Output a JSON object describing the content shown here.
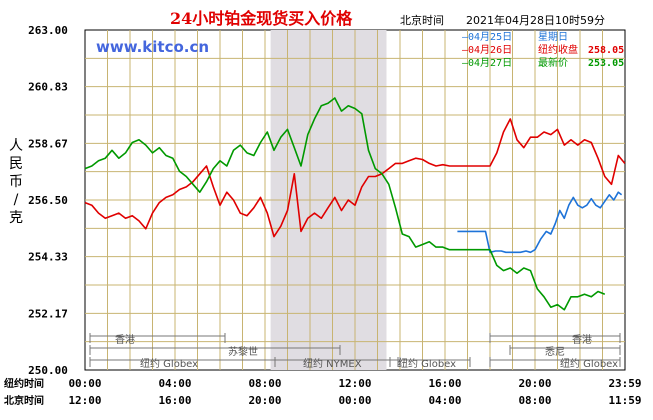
{
  "title": "24小时铂金现货买入价格",
  "header_time_label": "北京时间",
  "header_timestamp": "2021年04月28日10时59分",
  "watermark": "www.kitco.cn",
  "ylabel": "人民币/克",
  "row_labels": {
    "ny": "纽约时间",
    "bj": "北京时间"
  },
  "legend": [
    {
      "date": "04月25日",
      "desc": "星期日",
      "value": "",
      "color": "#1e73d8"
    },
    {
      "date": "04月26日",
      "desc": "纽约收盘",
      "value": "258.05",
      "color": "#e00000"
    },
    {
      "date": "04月27日",
      "desc": "最新价",
      "value": "253.05",
      "color": "#009900"
    }
  ],
  "market_labels": {
    "hk1": "香港",
    "zurich": "苏黎世",
    "ny_globex_1": "纽约 Globex",
    "ny_nymex": "纽约 NYMEX",
    "ny_globex_2": "纽约 Globex",
    "hk2": "香港",
    "sydney": "悉尼",
    "ny_globex_3": "纽约 Globex"
  },
  "colors": {
    "grid": "#c8b472",
    "shade": "#e0dde2",
    "blue": "#1e73d8",
    "red": "#e00000",
    "green": "#009900",
    "watermark": "#4466dd"
  },
  "chart_data": {
    "type": "line",
    "title": "24小时铂金现货买入价格",
    "ylabel": "人民币/克",
    "ylim": [
      250.0,
      263.0
    ],
    "y_ticks": [
      "263.00",
      "260.83",
      "258.67",
      "256.50",
      "254.33",
      "252.17",
      "250.00"
    ],
    "x_range_hours": [
      0,
      24
    ],
    "x_ticks_ny": [
      "00:00",
      "04:00",
      "08:00",
      "12:00",
      "16:00",
      "20:00",
      "23:59"
    ],
    "x_ticks_bj": [
      "12:00",
      "16:00",
      "20:00",
      "00:00",
      "04:00",
      "08:00",
      "11:59"
    ],
    "shaded_hours": [
      8.25,
      13.4
    ],
    "series": [
      {
        "name": "04月25日",
        "color": "#1e73d8",
        "x": [
          16.55,
          16.7,
          16.9,
          17.1,
          17.35,
          17.6,
          17.8,
          18.0,
          18.25,
          18.5,
          18.7,
          18.9,
          19.1,
          19.35,
          19.6,
          19.8,
          20.0,
          20.25,
          20.5,
          20.7,
          20.9,
          21.1,
          21.3,
          21.5,
          21.7,
          21.9,
          22.1,
          22.3,
          22.5,
          22.7,
          22.9,
          23.1,
          23.3,
          23.5,
          23.7,
          23.85
        ],
        "y": [
          255.3,
          255.3,
          255.3,
          255.3,
          255.3,
          255.3,
          255.3,
          254.5,
          254.55,
          254.55,
          254.5,
          254.5,
          254.5,
          254.5,
          254.55,
          254.5,
          254.6,
          255.0,
          255.3,
          255.2,
          255.6,
          256.1,
          255.8,
          256.3,
          256.6,
          256.3,
          256.2,
          256.3,
          256.55,
          256.3,
          256.2,
          256.45,
          256.7,
          256.5,
          256.8,
          256.7
        ]
      },
      {
        "name": "04月26日",
        "color": "#e00000",
        "x": [
          0,
          0.3,
          0.6,
          0.9,
          1.2,
          1.5,
          1.8,
          2.1,
          2.4,
          2.7,
          3.0,
          3.3,
          3.6,
          3.9,
          4.2,
          4.5,
          4.8,
          5.1,
          5.4,
          5.7,
          6.0,
          6.3,
          6.6,
          6.9,
          7.2,
          7.5,
          7.8,
          8.1,
          8.4,
          8.7,
          9.0,
          9.3,
          9.6,
          9.9,
          10.2,
          10.5,
          10.8,
          11.1,
          11.4,
          11.7,
          12.0,
          12.3,
          12.6,
          12.9,
          13.2,
          13.5,
          13.8,
          14.1,
          14.4,
          14.7,
          15.0,
          15.3,
          15.6,
          15.9,
          16.2,
          16.5,
          16.8,
          17.1,
          17.4,
          17.7,
          18.0,
          18.3,
          18.6,
          18.9,
          19.2,
          19.5,
          19.8,
          20.1,
          20.4,
          20.7,
          21.0,
          21.3,
          21.6,
          21.9,
          22.2,
          22.5,
          22.8,
          23.1,
          23.4,
          23.7,
          23.99
        ],
        "y": [
          256.4,
          256.3,
          256.0,
          255.8,
          255.9,
          256.0,
          255.8,
          255.9,
          255.7,
          255.4,
          256.0,
          256.4,
          256.6,
          256.7,
          256.9,
          257.0,
          257.2,
          257.5,
          257.8,
          257.0,
          256.3,
          256.8,
          256.5,
          256.0,
          255.9,
          256.2,
          256.6,
          256.0,
          255.1,
          255.5,
          256.1,
          257.5,
          255.3,
          255.8,
          256.0,
          255.8,
          256.2,
          256.6,
          256.1,
          256.5,
          256.3,
          257.0,
          257.4,
          257.4,
          257.5,
          257.7,
          257.9,
          257.9,
          258.0,
          258.1,
          258.05,
          257.9,
          257.8,
          257.85,
          257.8,
          257.8,
          257.8,
          257.8,
          257.8,
          257.8,
          257.8,
          258.3,
          259.1,
          259.6,
          258.8,
          258.5,
          258.9,
          258.9,
          259.1,
          259.0,
          259.2,
          258.6,
          258.8,
          258.6,
          258.8,
          258.7,
          258.1,
          257.4,
          257.1,
          258.2,
          257.9
        ]
      },
      {
        "name": "04月27日",
        "color": "#009900",
        "x": [
          0,
          0.3,
          0.6,
          0.9,
          1.2,
          1.5,
          1.8,
          2.1,
          2.4,
          2.7,
          3.0,
          3.3,
          3.6,
          3.9,
          4.2,
          4.5,
          4.8,
          5.1,
          5.4,
          5.7,
          6.0,
          6.3,
          6.6,
          6.9,
          7.2,
          7.5,
          7.8,
          8.1,
          8.4,
          8.7,
          9.0,
          9.3,
          9.6,
          9.9,
          10.2,
          10.5,
          10.8,
          11.1,
          11.4,
          11.7,
          12.0,
          12.3,
          12.6,
          12.9,
          13.2,
          13.5,
          13.8,
          14.1,
          14.4,
          14.7,
          15.0,
          15.3,
          15.6,
          15.9,
          16.2,
          16.5,
          16.8,
          17.1,
          17.4,
          17.7,
          18.0,
          18.3,
          18.6,
          18.9,
          19.2,
          19.5,
          19.8,
          20.1,
          20.4,
          20.7,
          21.0,
          21.3,
          21.6,
          21.9,
          22.2,
          22.5,
          22.8,
          23.1
        ],
        "y": [
          257.7,
          257.8,
          258.0,
          258.1,
          258.4,
          258.1,
          258.3,
          258.7,
          258.8,
          258.6,
          258.3,
          258.5,
          258.2,
          258.1,
          257.6,
          257.4,
          257.1,
          256.8,
          257.2,
          257.7,
          258.0,
          257.8,
          258.4,
          258.6,
          258.3,
          258.2,
          258.7,
          259.1,
          258.4,
          258.9,
          259.2,
          258.5,
          257.8,
          259.0,
          259.6,
          260.1,
          260.2,
          260.4,
          259.9,
          260.1,
          260.0,
          259.8,
          258.4,
          257.7,
          257.5,
          257.1,
          256.2,
          255.2,
          255.1,
          254.7,
          254.8,
          254.9,
          254.7,
          254.7,
          254.6,
          254.6,
          254.6,
          254.6,
          254.6,
          254.6,
          254.6,
          254.0,
          253.8,
          253.9,
          253.7,
          253.9,
          253.8,
          253.1,
          252.8,
          252.4,
          252.5,
          252.3,
          252.8,
          252.8,
          252.9,
          252.8,
          253.0,
          252.9
        ]
      }
    ]
  }
}
